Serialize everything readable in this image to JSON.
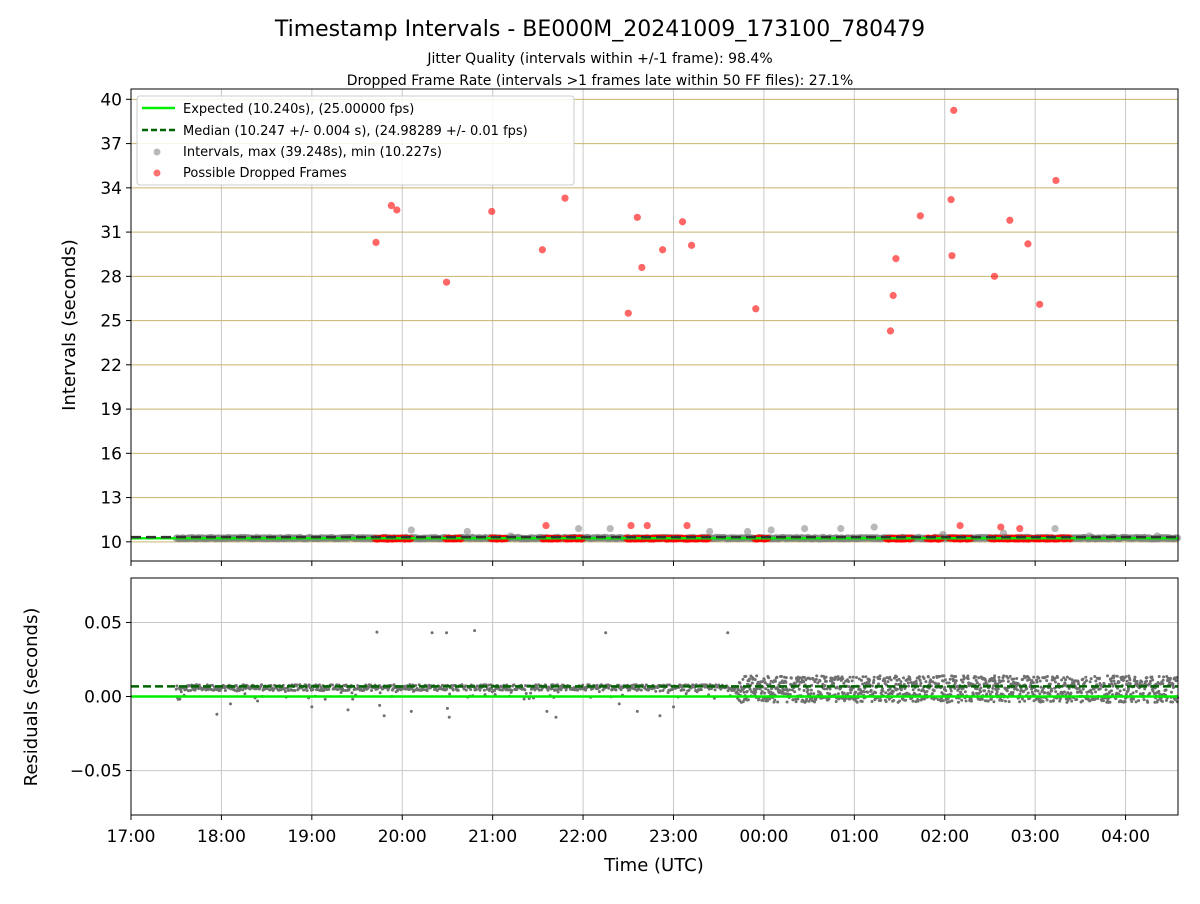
{
  "colors": {
    "expected": "#00ee00",
    "median": "#006400",
    "intervals": "#808080",
    "dropped": "#ff0000",
    "goldgrid": "#c8b46e",
    "grid": "#c8c8c8",
    "residuals": "#707070"
  },
  "chart_data": [
    {
      "type": "scatter",
      "title": "Timestamp Intervals - BE000M_20241009_173100_780479",
      "subtitle_lines": [
        "Jitter Quality (intervals within +/-1 frame): 98.4%",
        "Dropped Frame Rate (intervals >1 frames late within 50 FF files): 27.1%"
      ],
      "xlabel": "",
      "ylabel": "Intervals (seconds)",
      "x_unit": "hours since 17:00 UTC",
      "xlim": [
        17.0,
        28.58
      ],
      "ylim": [
        8.7,
        40.7
      ],
      "yticks": [
        10,
        13,
        16,
        19,
        22,
        25,
        28,
        31,
        34,
        37,
        40
      ],
      "grid": true,
      "legend_position": "top-left",
      "legend": [
        {
          "label": "Expected (10.240s), (25.00000 fps)",
          "style": "line"
        },
        {
          "label": "Median (10.247 +/- 0.004 s), (24.98289 +/- 0.01 fps)",
          "style": "dashed"
        },
        {
          "label": "Intervals, max (39.248s), min (10.227s)",
          "style": "gray-dot"
        },
        {
          "label": "Possible Dropped Frames",
          "style": "red-dot"
        }
      ],
      "series": [
        {
          "name": "Expected (10.240s), (25.00000 fps)",
          "kind": "hline",
          "y": 10.24
        },
        {
          "name": "Median (10.247 +/- 0.004 s), (24.98289 +/- 0.01 fps)",
          "kind": "hline-dashed",
          "y": 10.247
        },
        {
          "name": "Intervals, max (39.248s), min (10.227s)",
          "kind": "points",
          "x": [
            20.1,
            20.72,
            21.2,
            21.95,
            22.3,
            23.4,
            23.82,
            24.08,
            24.45,
            24.85,
            25.22,
            25.98,
            26.65,
            27.22,
            27.6,
            28.35
          ],
          "y": [
            10.8,
            10.7,
            10.4,
            10.9,
            10.9,
            10.7,
            10.7,
            10.8,
            10.9,
            10.9,
            11.0,
            10.5,
            10.6,
            10.9,
            10.4,
            10.4
          ],
          "band_y": 10.25,
          "band_x": [
            17.5,
            28.58
          ]
        },
        {
          "name": "Possible Dropped Frames",
          "kind": "points",
          "x": [
            19.71,
            19.88,
            19.94,
            20.49,
            20.99,
            21.55,
            21.8,
            22.5,
            22.6,
            22.65,
            22.88,
            23.1,
            23.2,
            23.91,
            25.4,
            25.43,
            25.46,
            25.73,
            26.07,
            26.08,
            26.1,
            26.55,
            26.72,
            26.92,
            27.05,
            27.23,
            21.59,
            22.53,
            22.71,
            23.15,
            26.17,
            26.62,
            26.83
          ],
          "y": [
            30.3,
            32.8,
            32.5,
            27.6,
            32.4,
            29.8,
            33.3,
            25.5,
            32.0,
            28.6,
            29.8,
            31.7,
            30.1,
            25.8,
            24.3,
            26.7,
            29.2,
            32.1,
            33.2,
            29.4,
            39.25,
            28.0,
            31.8,
            30.2,
            26.1,
            34.5,
            11.1,
            11.1,
            11.1,
            11.1,
            11.1,
            11.0,
            10.9
          ],
          "clusters_y": 10.22,
          "clusters": [
            [
              19.7,
              20.1
            ],
            [
              20.48,
              20.65
            ],
            [
              20.98,
              21.15
            ],
            [
              21.55,
              21.75
            ],
            [
              21.8,
              22.0
            ],
            [
              22.48,
              22.87
            ],
            [
              22.9,
              23.1
            ],
            [
              23.1,
              23.4
            ],
            [
              23.9,
              24.05
            ],
            [
              25.35,
              25.65
            ],
            [
              25.8,
              25.98
            ],
            [
              26.05,
              26.3
            ],
            [
              26.5,
              26.95
            ],
            [
              26.98,
              27.4
            ]
          ]
        }
      ]
    },
    {
      "type": "scatter",
      "title": "",
      "xlabel": "Time (UTC)",
      "ylabel": "Residuals (seconds)",
      "x_unit": "hours since 17:00 UTC",
      "xlim": [
        17.0,
        28.58
      ],
      "ylim": [
        -0.08,
        0.08
      ],
      "yticks": [
        -0.05,
        0.0,
        0.05
      ],
      "ytick_labels": [
        "−0.05",
        "0.00",
        "0.05"
      ],
      "xticks": [
        17,
        18,
        19,
        20,
        21,
        22,
        23,
        24,
        25,
        26,
        27,
        28
      ],
      "xtick_labels": [
        "17:00",
        "18:00",
        "19:00",
        "20:00",
        "21:00",
        "22:00",
        "23:00",
        "00:00",
        "01:00",
        "02:00",
        "03:00",
        "04:00"
      ],
      "grid": true,
      "series": [
        {
          "name": "Expected",
          "kind": "hline",
          "y": 0.0
        },
        {
          "name": "Median",
          "kind": "hline-dashed",
          "y": 0.0068
        },
        {
          "name": "Residuals",
          "kind": "points",
          "outliers_x": [
            19.72,
            20.33,
            20.49,
            20.8,
            22.25,
            23.6
          ],
          "outliers_y": [
            0.0435,
            0.043,
            0.043,
            0.0445,
            0.043,
            0.043
          ],
          "band_early": {
            "x": [
              17.5,
              23.7
            ],
            "center": 0.006,
            "spread": 0.004
          },
          "band_late": {
            "x": [
              23.7,
              28.58
            ],
            "center": 0.005,
            "spread": 0.009
          },
          "low_scatter_x": [
            17.95,
            18.1,
            18.4,
            19.0,
            19.4,
            19.75,
            19.8,
            20.1,
            20.5,
            20.52,
            21.6,
            21.7,
            22.4,
            22.6,
            22.85,
            23.0
          ],
          "low_scatter_y": [
            -0.012,
            -0.005,
            -0.003,
            -0.007,
            -0.009,
            -0.006,
            -0.013,
            -0.01,
            -0.008,
            -0.014,
            -0.01,
            -0.014,
            -0.005,
            -0.01,
            -0.013,
            -0.007
          ]
        }
      ]
    }
  ]
}
